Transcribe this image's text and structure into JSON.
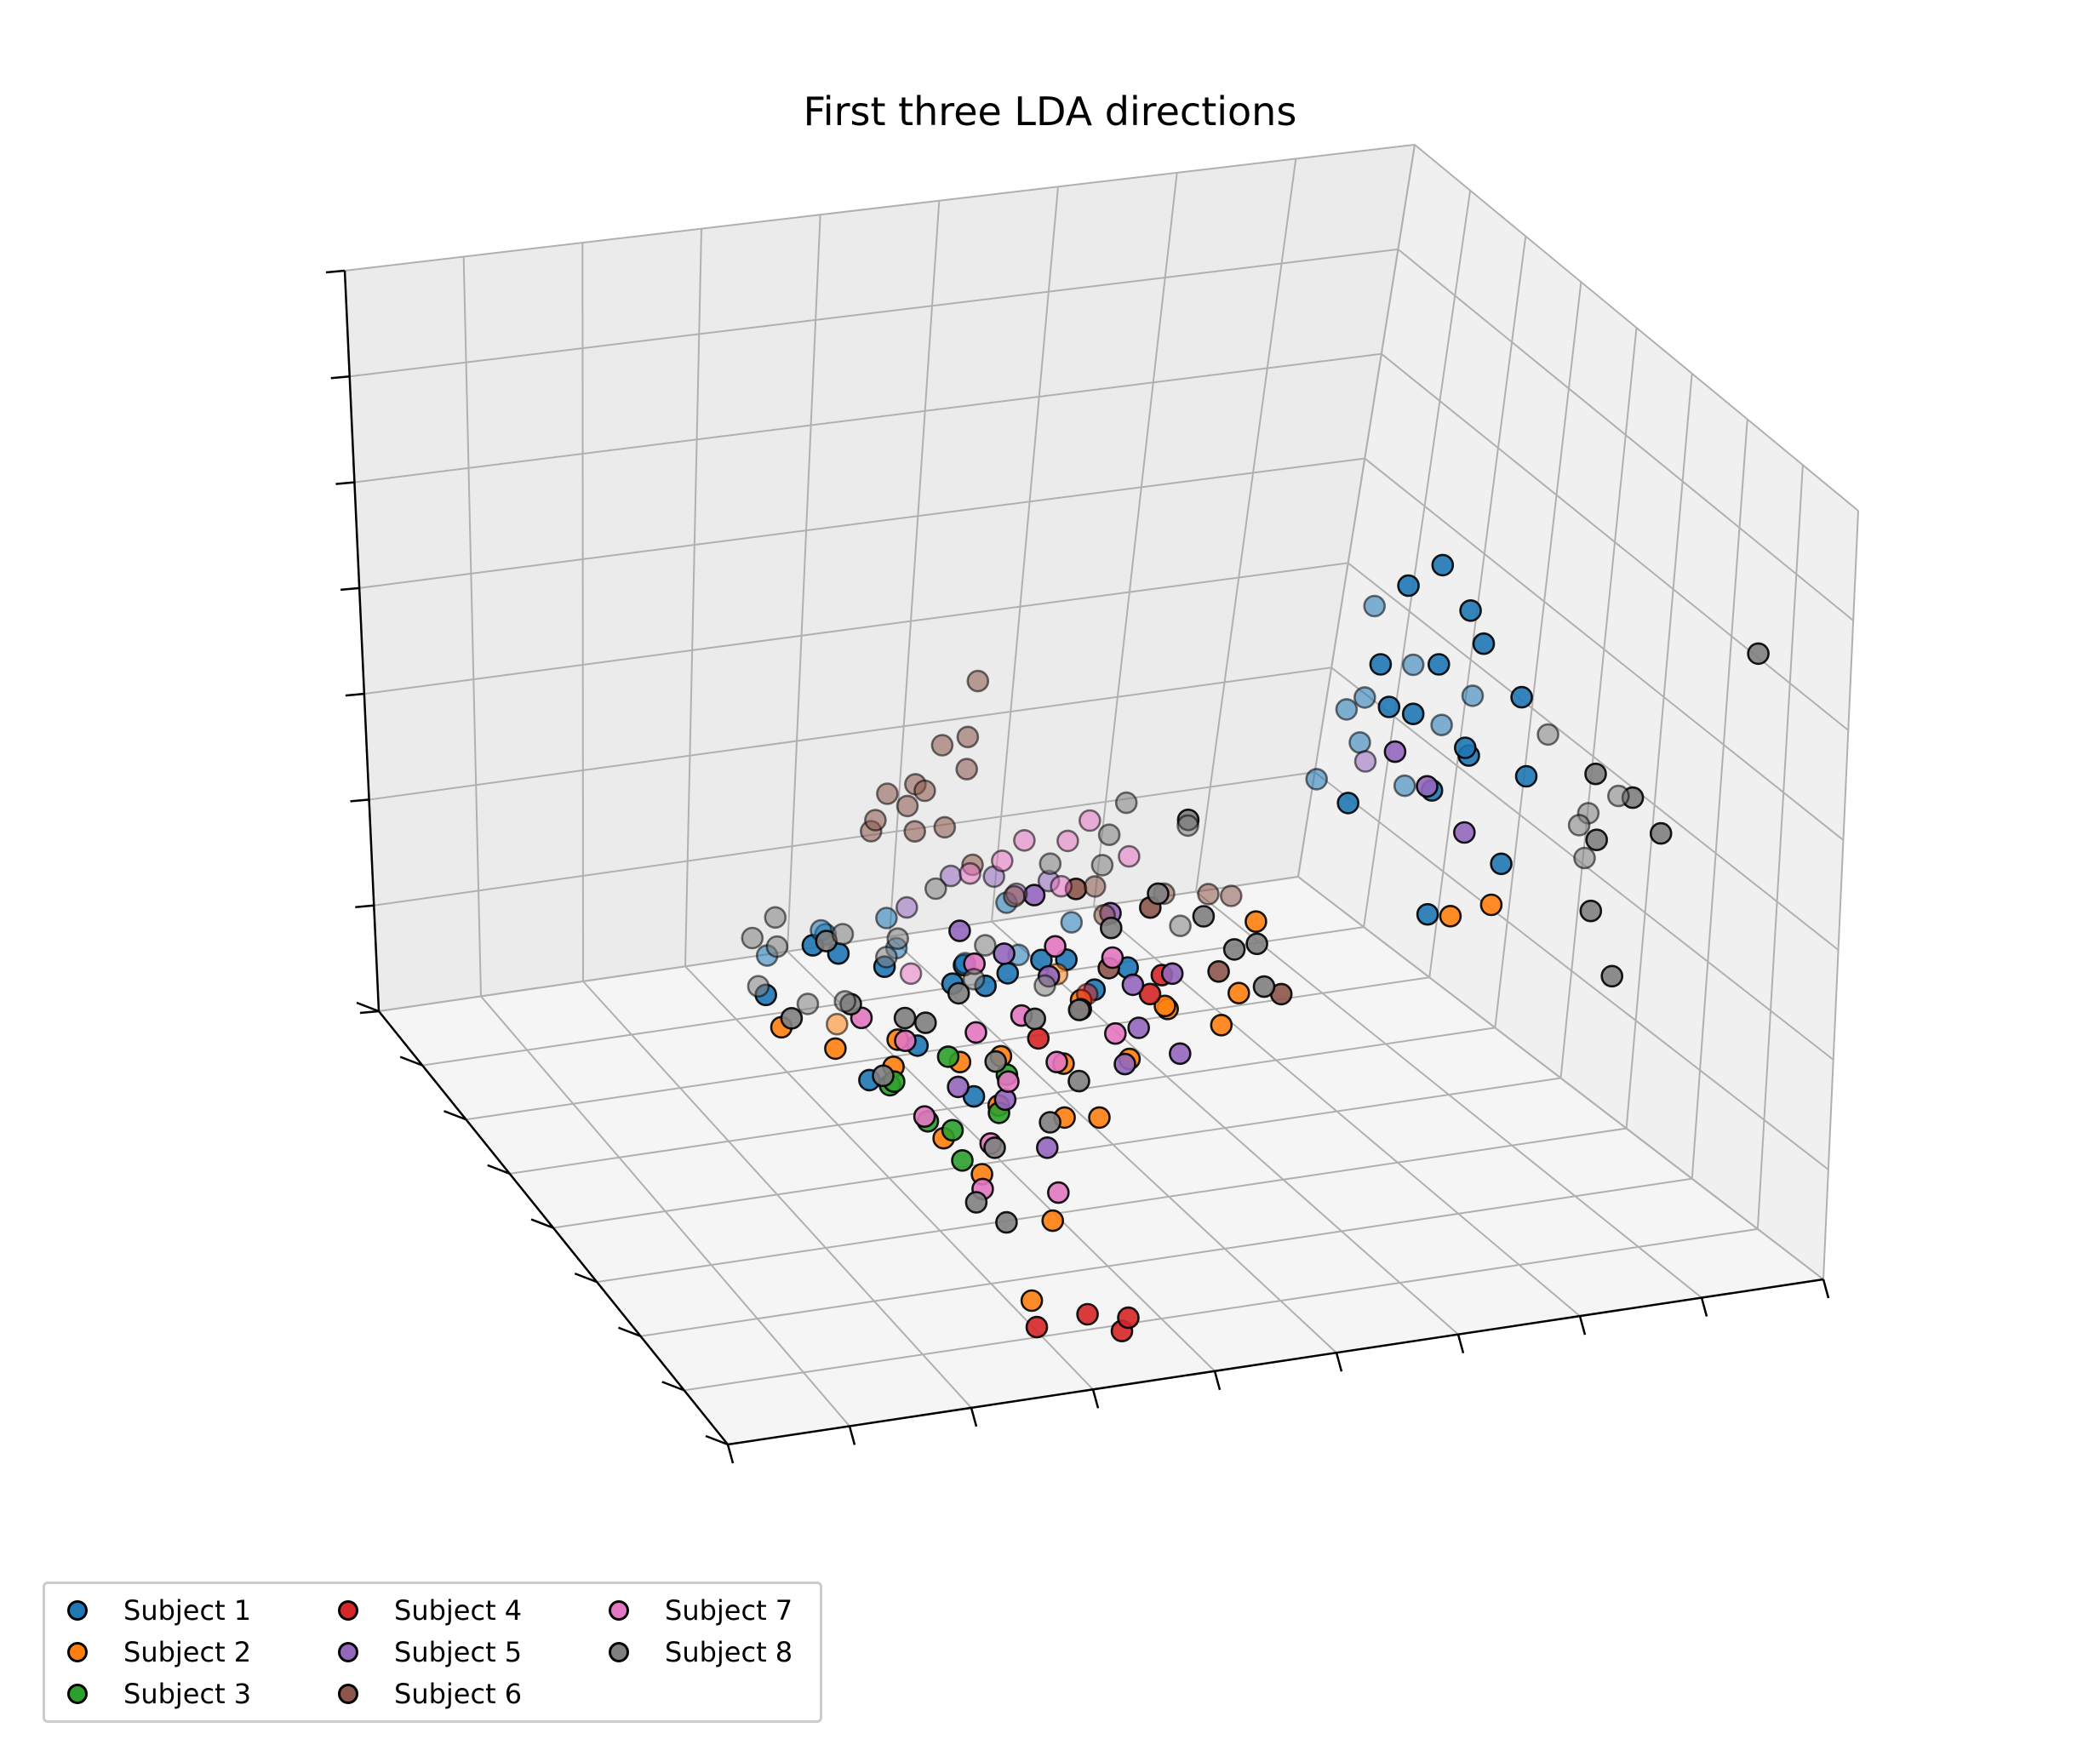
{
  "chart_data": {
    "type": "scatter",
    "projection": "3d",
    "title": "First three LDA directions",
    "xlabel": "",
    "ylabel": "",
    "zlabel": "",
    "grid": true,
    "tick_labels_shown": false,
    "legend_placement": "bottom-left",
    "legend_columns": 3,
    "note": "Axes carry no tick labels; values are in a normalized 0-1 range per axis, estimated from the projected positions.",
    "series": [
      {
        "name": "Subject 1",
        "color": "#1f77b4",
        "points": [
          [
            0.78,
            0.3,
            0.82
          ],
          [
            0.8,
            0.27,
            0.86
          ],
          [
            0.76,
            0.33,
            0.78
          ],
          [
            0.82,
            0.26,
            0.8
          ],
          [
            0.75,
            0.3,
            0.72
          ],
          [
            0.79,
            0.32,
            0.7
          ],
          [
            0.84,
            0.28,
            0.74
          ],
          [
            0.77,
            0.28,
            0.66
          ],
          [
            0.81,
            0.31,
            0.62
          ],
          [
            0.74,
            0.33,
            0.6
          ],
          [
            0.86,
            0.25,
            0.68
          ],
          [
            0.83,
            0.3,
            0.58
          ],
          [
            0.78,
            0.27,
            0.56
          ],
          [
            0.72,
            0.31,
            0.66
          ],
          [
            0.8,
            0.24,
            0.63
          ],
          [
            0.76,
            0.36,
            0.64
          ],
          [
            0.73,
            0.24,
            0.7
          ],
          [
            0.85,
            0.33,
            0.64
          ],
          [
            0.7,
            0.27,
            0.56
          ],
          [
            0.79,
            0.35,
            0.52
          ],
          [
            0.82,
            0.22,
            0.48
          ],
          [
            0.74,
            0.2,
            0.44
          ],
          [
            0.87,
            0.27,
            0.56
          ],
          [
            0.71,
            0.36,
            0.54
          ],
          [
            0.77,
            0.22,
            0.76
          ],
          [
            0.19,
            0.28,
            0.47
          ],
          [
            0.22,
            0.33,
            0.45
          ],
          [
            0.25,
            0.26,
            0.44
          ],
          [
            0.28,
            0.31,
            0.43
          ],
          [
            0.17,
            0.35,
            0.42
          ],
          [
            0.31,
            0.25,
            0.41
          ],
          [
            0.34,
            0.3,
            0.4
          ],
          [
            0.37,
            0.27,
            0.4
          ],
          [
            0.4,
            0.32,
            0.39
          ],
          [
            0.43,
            0.28,
            0.4
          ],
          [
            0.46,
            0.34,
            0.41
          ],
          [
            0.2,
            0.24,
            0.48
          ],
          [
            0.23,
            0.37,
            0.43
          ],
          [
            0.29,
            0.36,
            0.44
          ],
          [
            0.33,
            0.22,
            0.42
          ],
          [
            0.36,
            0.35,
            0.37
          ],
          [
            0.44,
            0.24,
            0.38
          ],
          [
            0.41,
            0.37,
            0.43
          ],
          [
            0.26,
            0.21,
            0.36
          ],
          [
            0.15,
            0.3,
            0.4
          ],
          [
            0.48,
            0.26,
            0.39
          ],
          [
            0.21,
            0.2,
            0.33
          ],
          [
            0.38,
            0.21,
            0.45
          ],
          [
            0.3,
            0.18,
            0.3
          ]
        ]
      },
      {
        "name": "Subject 2",
        "color": "#ff7f0e",
        "points": [
          [
            0.77,
            0.22,
            0.42
          ],
          [
            0.8,
            0.2,
            0.44
          ],
          [
            0.62,
            0.3,
            0.4
          ],
          [
            0.58,
            0.25,
            0.34
          ],
          [
            0.52,
            0.27,
            0.32
          ],
          [
            0.45,
            0.3,
            0.33
          ],
          [
            0.4,
            0.22,
            0.3
          ],
          [
            0.36,
            0.27,
            0.29
          ],
          [
            0.31,
            0.24,
            0.31
          ],
          [
            0.27,
            0.29,
            0.32
          ],
          [
            0.24,
            0.22,
            0.33
          ],
          [
            0.2,
            0.26,
            0.34
          ],
          [
            0.16,
            0.29,
            0.36
          ],
          [
            0.42,
            0.19,
            0.24
          ],
          [
            0.38,
            0.17,
            0.26
          ],
          [
            0.33,
            0.2,
            0.27
          ],
          [
            0.29,
            0.14,
            0.22
          ],
          [
            0.35,
            0.13,
            0.15
          ],
          [
            0.47,
            0.24,
            0.28
          ],
          [
            0.55,
            0.22,
            0.32
          ],
          [
            0.22,
            0.31,
            0.34
          ],
          [
            0.44,
            0.33,
            0.35
          ],
          [
            0.49,
            0.2,
            0.37
          ],
          [
            0.27,
            0.18,
            0.25
          ],
          [
            0.32,
            0.11,
            0.06
          ]
        ]
      },
      {
        "name": "Subject 3",
        "color": "#2ca02c",
        "points": [
          [
            0.27,
            0.22,
            0.25
          ],
          [
            0.3,
            0.24,
            0.22
          ],
          [
            0.33,
            0.2,
            0.26
          ],
          [
            0.25,
            0.26,
            0.28
          ],
          [
            0.35,
            0.23,
            0.29
          ],
          [
            0.29,
            0.19,
            0.21
          ],
          [
            0.31,
            0.27,
            0.3
          ],
          [
            0.24,
            0.22,
            0.31
          ]
        ]
      },
      {
        "name": "Subject 4",
        "color": "#d62728",
        "points": [
          [
            0.38,
            0.05,
            0.04
          ],
          [
            0.39,
            0.06,
            0.05
          ],
          [
            0.36,
            0.08,
            0.05
          ],
          [
            0.32,
            0.1,
            0.03
          ],
          [
            0.52,
            0.28,
            0.36
          ],
          [
            0.5,
            0.26,
            0.35
          ],
          [
            0.4,
            0.28,
            0.3
          ],
          [
            0.46,
            0.31,
            0.33
          ]
        ]
      },
      {
        "name": "Subject 5",
        "color": "#9467bd",
        "points": [
          [
            0.76,
            0.3,
            0.6
          ],
          [
            0.78,
            0.28,
            0.56
          ],
          [
            0.74,
            0.32,
            0.58
          ],
          [
            0.8,
            0.25,
            0.51
          ],
          [
            0.38,
            0.32,
            0.5
          ],
          [
            0.35,
            0.35,
            0.49
          ],
          [
            0.41,
            0.3,
            0.48
          ],
          [
            0.33,
            0.28,
            0.46
          ],
          [
            0.44,
            0.34,
            0.47
          ],
          [
            0.36,
            0.25,
            0.44
          ],
          [
            0.31,
            0.36,
            0.45
          ],
          [
            0.47,
            0.27,
            0.46
          ],
          [
            0.39,
            0.22,
            0.42
          ],
          [
            0.42,
            0.37,
            0.44
          ],
          [
            0.5,
            0.3,
            0.34
          ],
          [
            0.53,
            0.28,
            0.36
          ],
          [
            0.48,
            0.24,
            0.32
          ],
          [
            0.34,
            0.21,
            0.27
          ],
          [
            0.37,
            0.19,
            0.21
          ],
          [
            0.3,
            0.22,
            0.29
          ],
          [
            0.45,
            0.2,
            0.3
          ],
          [
            0.51,
            0.22,
            0.29
          ]
        ]
      },
      {
        "name": "Subject 6",
        "color": "#8c564b",
        "points": [
          [
            0.3,
            0.37,
            0.6
          ],
          [
            0.32,
            0.35,
            0.62
          ],
          [
            0.34,
            0.38,
            0.59
          ],
          [
            0.31,
            0.33,
            0.57
          ],
          [
            0.35,
            0.36,
            0.55
          ],
          [
            0.29,
            0.39,
            0.54
          ],
          [
            0.36,
            0.32,
            0.52
          ],
          [
            0.33,
            0.4,
            0.56
          ],
          [
            0.37,
            0.35,
            0.63
          ],
          [
            0.28,
            0.35,
            0.58
          ],
          [
            0.38,
            0.37,
            0.66
          ],
          [
            0.34,
            0.33,
            0.68
          ],
          [
            0.4,
            0.39,
            0.72
          ],
          [
            0.45,
            0.3,
            0.48
          ],
          [
            0.48,
            0.33,
            0.46
          ],
          [
            0.52,
            0.3,
            0.44
          ],
          [
            0.55,
            0.34,
            0.43
          ],
          [
            0.58,
            0.31,
            0.44
          ],
          [
            0.61,
            0.33,
            0.42
          ],
          [
            0.5,
            0.36,
            0.4
          ],
          [
            0.47,
            0.28,
            0.38
          ],
          [
            0.57,
            0.27,
            0.36
          ],
          [
            0.43,
            0.25,
            0.35
          ],
          [
            0.62,
            0.25,
            0.33
          ],
          [
            0.41,
            0.35,
            0.45
          ]
        ]
      },
      {
        "name": "Subject 7",
        "color": "#e377c2",
        "points": [
          [
            0.4,
            0.35,
            0.5
          ],
          [
            0.43,
            0.37,
            0.51
          ],
          [
            0.46,
            0.34,
            0.52
          ],
          [
            0.49,
            0.36,
            0.53
          ],
          [
            0.44,
            0.31,
            0.48
          ],
          [
            0.51,
            0.32,
            0.5
          ],
          [
            0.38,
            0.38,
            0.47
          ],
          [
            0.42,
            0.28,
            0.42
          ],
          [
            0.37,
            0.24,
            0.36
          ],
          [
            0.34,
            0.2,
            0.3
          ],
          [
            0.31,
            0.17,
            0.24
          ],
          [
            0.29,
            0.14,
            0.2
          ],
          [
            0.36,
            0.14,
            0.18
          ],
          [
            0.27,
            0.27,
            0.33
          ],
          [
            0.24,
            0.3,
            0.35
          ],
          [
            0.39,
            0.21,
            0.31
          ],
          [
            0.33,
            0.25,
            0.34
          ],
          [
            0.47,
            0.27,
            0.4
          ],
          [
            0.3,
            0.33,
            0.38
          ],
          [
            0.26,
            0.2,
            0.27
          ],
          [
            0.35,
            0.3,
            0.4
          ],
          [
            0.45,
            0.22,
            0.33
          ]
        ]
      },
      {
        "name": "Subject 8",
        "color": "#7f7f7f",
        "points": [
          [
            0.99,
            0.05,
            0.82
          ],
          [
            0.93,
            0.35,
            0.56
          ],
          [
            0.95,
            0.3,
            0.53
          ],
          [
            0.97,
            0.27,
            0.51
          ],
          [
            0.99,
            0.34,
            0.47
          ],
          [
            0.92,
            0.24,
            0.48
          ],
          [
            0.97,
            0.36,
            0.44
          ],
          [
            1.0,
            0.28,
            0.45
          ],
          [
            0.98,
            0.4,
            0.4
          ],
          [
            0.95,
            0.33,
            0.4
          ],
          [
            0.93,
            0.28,
            0.36
          ],
          [
            0.91,
            0.2,
            0.32
          ],
          [
            0.59,
            0.28,
            0.38
          ],
          [
            0.62,
            0.3,
            0.37
          ],
          [
            0.56,
            0.33,
            0.39
          ],
          [
            0.5,
            0.34,
            0.52
          ],
          [
            0.53,
            0.37,
            0.54
          ],
          [
            0.48,
            0.31,
            0.5
          ],
          [
            0.56,
            0.3,
            0.55
          ],
          [
            0.45,
            0.36,
            0.48
          ],
          [
            0.52,
            0.28,
            0.47
          ],
          [
            0.58,
            0.35,
            0.51
          ],
          [
            0.47,
            0.27,
            0.44
          ],
          [
            0.55,
            0.25,
            0.45
          ],
          [
            0.15,
            0.32,
            0.4
          ],
          [
            0.18,
            0.35,
            0.43
          ],
          [
            0.21,
            0.3,
            0.46
          ],
          [
            0.24,
            0.34,
            0.44
          ],
          [
            0.27,
            0.31,
            0.42
          ],
          [
            0.3,
            0.36,
            0.41
          ],
          [
            0.22,
            0.27,
            0.39
          ],
          [
            0.26,
            0.24,
            0.38
          ],
          [
            0.33,
            0.29,
            0.37
          ],
          [
            0.36,
            0.33,
            0.36
          ],
          [
            0.19,
            0.38,
            0.45
          ],
          [
            0.29,
            0.27,
            0.35
          ],
          [
            0.39,
            0.26,
            0.34
          ],
          [
            0.42,
            0.31,
            0.35
          ],
          [
            0.25,
            0.37,
            0.33
          ],
          [
            0.34,
            0.23,
            0.31
          ],
          [
            0.31,
            0.16,
            0.24
          ],
          [
            0.28,
            0.13,
            0.19
          ],
          [
            0.3,
            0.11,
            0.17
          ],
          [
            0.37,
            0.18,
            0.25
          ],
          [
            0.41,
            0.21,
            0.28
          ],
          [
            0.2,
            0.33,
            0.36
          ],
          [
            0.44,
            0.28,
            0.33
          ],
          [
            0.17,
            0.29,
            0.37
          ],
          [
            0.23,
            0.22,
            0.32
          ],
          [
            0.38,
            0.35,
            0.39
          ],
          [
            0.6,
            0.24,
            0.35
          ],
          [
            0.35,
            0.39,
            0.45
          ],
          [
            0.16,
            0.36,
            0.44
          ]
        ]
      }
    ]
  }
}
